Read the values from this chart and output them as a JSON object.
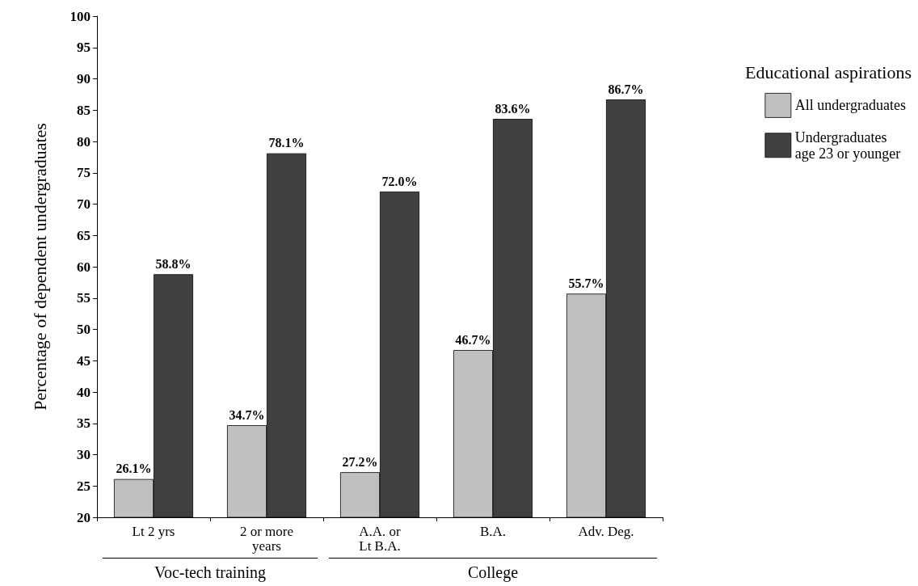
{
  "chart_data": {
    "type": "bar",
    "ylabel": "Percentage of dependent undergraduates",
    "legend_title": "Educational aspirations",
    "categories": [
      "Lt 2 yrs",
      "2 or more\nyears",
      "A.A. or\nLt B.A.",
      "B.A.",
      "Adv. Deg."
    ],
    "series": [
      {
        "name": "All undergraduates",
        "color": "#c0c0c0",
        "values": [
          26.1,
          34.7,
          27.2,
          46.7,
          55.7
        ],
        "value_labels": [
          "26.1%",
          "34.7%",
          "27.2%",
          "46.7%",
          "55.7%"
        ]
      },
      {
        "name": "Undergraduates\nage 23 or younger",
        "color": "#404040",
        "values": [
          58.8,
          78.1,
          72.0,
          83.6,
          86.7
        ],
        "value_labels": [
          "58.8%",
          "78.1%",
          "72.0%",
          "83.6%",
          "86.7%"
        ]
      }
    ],
    "ylim": [
      20,
      100
    ],
    "yticks": [
      20,
      25,
      30,
      35,
      40,
      45,
      50,
      55,
      60,
      65,
      70,
      75,
      80,
      85,
      90,
      95,
      100
    ],
    "grid": false,
    "legend": "right",
    "annotations": [
      "Voc-tech training",
      "College"
    ]
  }
}
